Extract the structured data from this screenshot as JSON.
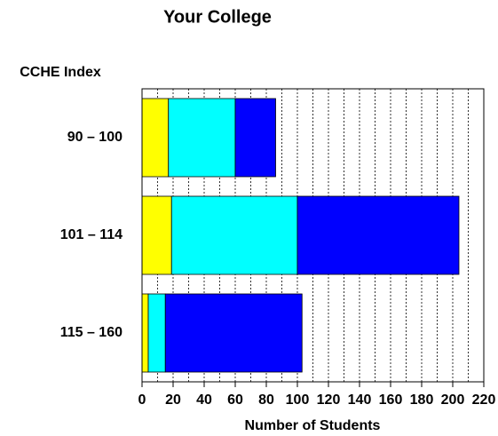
{
  "chart_data": {
    "type": "stacked_barh",
    "title": "Your College",
    "y_label": "CCHE Index",
    "x_label": "Number of Students",
    "categories": [
      "90 – 100",
      "101 – 114",
      "115 – 160"
    ],
    "series": [
      {
        "color": "#ffff00",
        "values": [
          17,
          19,
          4
        ]
      },
      {
        "color": "#00ffff",
        "values": [
          43,
          81,
          11
        ]
      },
      {
        "color": "#0000ff",
        "values": [
          26,
          104,
          88
        ]
      }
    ],
    "xlim": [
      0,
      220
    ],
    "xticks": [
      0,
      20,
      40,
      60,
      80,
      100,
      120,
      140,
      160,
      180,
      200,
      220
    ],
    "xminorticks": [
      10,
      30,
      50,
      70,
      90,
      110,
      130,
      150,
      170,
      190,
      210
    ],
    "grid": true
  }
}
